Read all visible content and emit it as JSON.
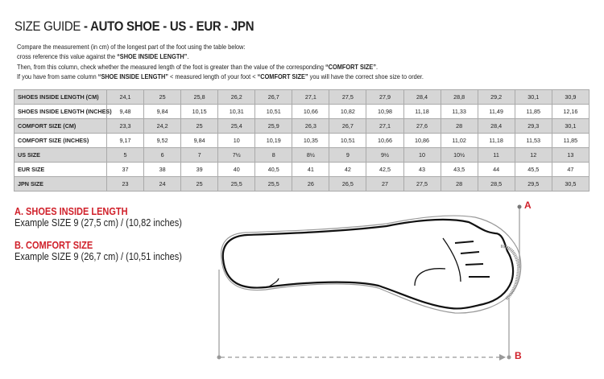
{
  "title": {
    "prefix": "SIZE GUIDE",
    "bold": " - AUTO SHOE - US - EUR - JPN"
  },
  "intro": [
    {
      "text": "Compare the measurement (in cm) of the longest part of the foot using the table below:"
    },
    {
      "pre": "cross reference this value against the ",
      "bold": "“SHOE INSIDE LENGTH”",
      "post": "."
    },
    {
      "pre": "Then, from this column, check whether the measured length of the foot is greater than the value of the corresponding ",
      "bold": "“COMFORT SIZE”",
      "post": "."
    },
    {
      "pre": "If you have from same column ",
      "bold": "“SHOE INSIDE LENGTH”",
      "mid": " <  measured length of your foot  < ",
      "bold2": "“COMFORT SIZE”",
      "post": " you will have the correct shoe size to order."
    }
  ],
  "table": [
    {
      "label": "SHOES INSIDE LENGTH (CM)",
      "values": [
        "24,1",
        "25",
        "25,8",
        "26,2",
        "26,7",
        "27,1",
        "27,5",
        "27,9",
        "28,4",
        "28,8",
        "29,2",
        "30,1",
        "30,9"
      ]
    },
    {
      "label": "SHOES INSIDE LENGTH (INCHES)",
      "values": [
        "9,48",
        "9,84",
        "10,15",
        "10,31",
        "10,51",
        "10,66",
        "10,82",
        "10,98",
        "11,18",
        "11,33",
        "11,49",
        "11,85",
        "12,16"
      ]
    },
    {
      "label": "COMFORT SIZE (CM)",
      "values": [
        "23,3",
        "24,2",
        "25",
        "25,4",
        "25,9",
        "26,3",
        "26,7",
        "27,1",
        "27,6",
        "28",
        "28,4",
        "29,3",
        "30,1"
      ]
    },
    {
      "label": "COMFORT SIZE (INCHES)",
      "values": [
        "9,17",
        "9,52",
        "9,84",
        "10",
        "10,19",
        "10,35",
        "10,51",
        "10,66",
        "10,86",
        "11,02",
        "11,18",
        "11,53",
        "11,85"
      ]
    },
    {
      "label": "US SIZE",
      "values": [
        "5",
        "6",
        "7",
        "7½",
        "8",
        "8½",
        "9",
        "9½",
        "10",
        "10½",
        "11",
        "12",
        "13"
      ]
    },
    {
      "label": "EUR SIZE",
      "values": [
        "37",
        "38",
        "39",
        "40",
        "40,5",
        "41",
        "42",
        "42,5",
        "43",
        "43,5",
        "44",
        "45,5",
        "47"
      ]
    },
    {
      "label": "JPN SIZE",
      "values": [
        "23",
        "24",
        "25",
        "25,5",
        "25,5",
        "26",
        "26,5",
        "27",
        "27,5",
        "28",
        "28,5",
        "29,5",
        "30,5"
      ]
    }
  ],
  "examples": {
    "a_heading": "A. SHOES INSIDE LENGTH",
    "a_text": "Example SIZE 9 (27,5 cm) / (10,82 inches)",
    "b_heading": "B. COMFORT SIZE",
    "b_text": "Example SIZE 9 (26,7 cm) / (10,51 inches)"
  },
  "diagram": {
    "marker_a": "A",
    "marker_b": "B",
    "accent_color": "#d0202a",
    "icon": "foot-outline-icon"
  }
}
